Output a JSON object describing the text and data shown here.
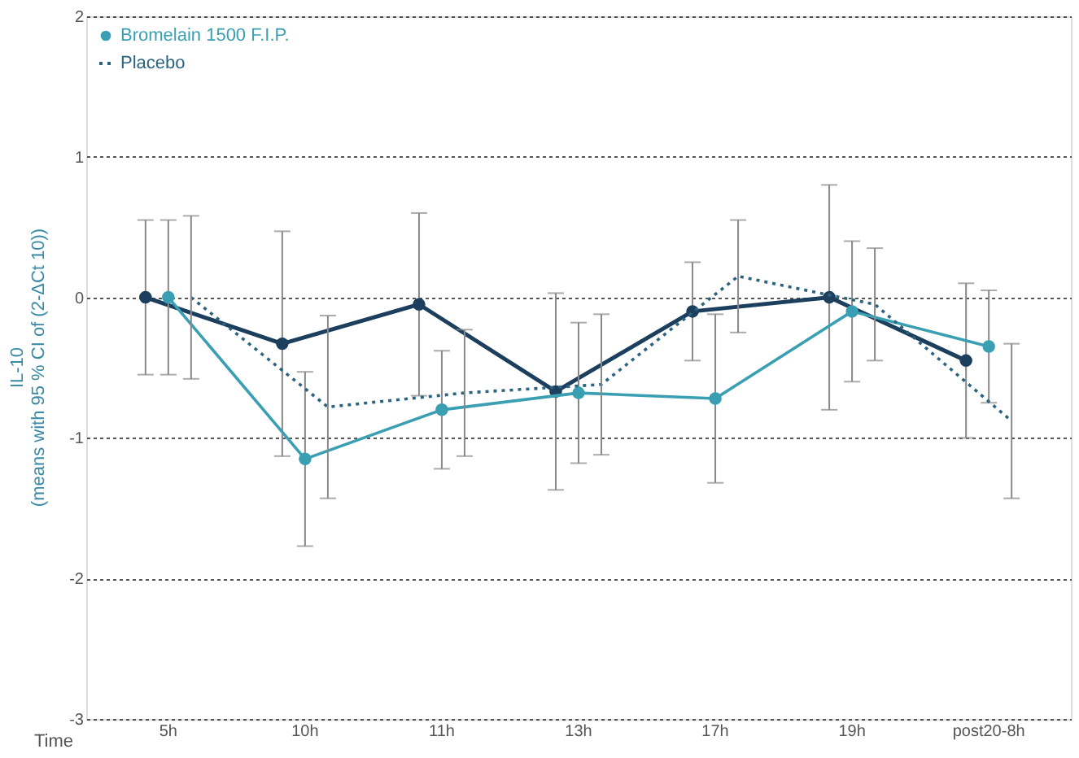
{
  "chart_data": {
    "type": "line",
    "xlabel": "Time",
    "ylabel": "IL-10\n(means with 95 % CI of (2-ΔCt 10))",
    "categories": [
      "5h",
      "10h",
      "11h",
      "13h",
      "17h",
      "19h",
      "post20-8h"
    ],
    "ylim": [
      -3,
      2
    ],
    "yticks": [
      -3,
      -2,
      -1,
      0,
      1,
      2
    ],
    "grid": "y",
    "legend": "top left",
    "series": [
      {
        "color": "#1d3f5e",
        "marker": "circle",
        "line_style": "solid",
        "values": [
          0,
          -0.33,
          -0.05,
          -0.67,
          -0.1,
          0,
          -0.45
        ],
        "errors": [
          0.55,
          0.8,
          0.65,
          0.7,
          0.35,
          0.8,
          0.55
        ]
      },
      {
        "name": "Bromelain 1500 F.I.P.",
        "color": "#3a9fb2",
        "marker": "circle",
        "line_style": "solid",
        "values": [
          0,
          -1.15,
          -0.8,
          -0.68,
          -0.72,
          -0.1,
          -0.35
        ],
        "errors": [
          0.55,
          0.62,
          0.42,
          0.5,
          0.6,
          0.5,
          0.4
        ]
      },
      {
        "name": "Placebo",
        "color": "#2b6480",
        "marker": "none",
        "line_style": "dotted",
        "values": [
          0,
          -0.78,
          -0.68,
          -0.62,
          0.15,
          -0.05,
          -0.88
        ],
        "errors": [
          0.58,
          0.65,
          0.45,
          0.5,
          0.4,
          0.4,
          0.55
        ]
      }
    ]
  }
}
